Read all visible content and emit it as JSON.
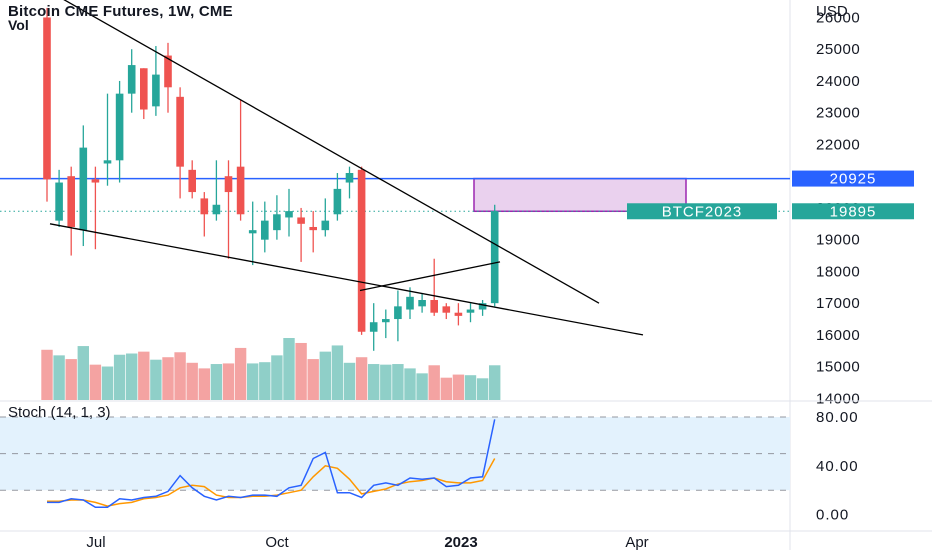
{
  "chart_data": [
    {
      "type": "candlestick",
      "title": "Bitcoin CME Futures, 1W, CME",
      "volume_label": "Vol",
      "currency": "USD",
      "y_ticks": [
        14000,
        15000,
        16000,
        17000,
        18000,
        19000,
        20000,
        21000,
        22000,
        23000,
        24000,
        25000,
        26000
      ],
      "y_tick_labels": [
        "14000",
        "15000",
        "16000",
        "17000",
        "18000",
        "19000",
        "20000",
        "21000",
        "22000",
        "23000",
        "24000",
        "25000",
        "26000"
      ],
      "y_range": [
        13950,
        26550
      ],
      "x_labels": [
        "Jul",
        "Oct",
        "2023",
        "Apr"
      ],
      "colors": {
        "up": "#26a69a",
        "down": "#ef5350",
        "vol_up": "#8fcfc8",
        "vol_down": "#f4a3a2",
        "price_line": "#2962ff",
        "trend": "#000000",
        "box": "#9c27b0"
      },
      "candles": [
        {
          "o": 26000,
          "h": 26300,
          "l": 20200,
          "c": 20900
        },
        {
          "o": 19600,
          "h": 21200,
          "l": 19400,
          "c": 20800
        },
        {
          "o": 21000,
          "h": 21300,
          "l": 18500,
          "c": 19400
        },
        {
          "o": 19300,
          "h": 22600,
          "l": 18800,
          "c": 21900
        },
        {
          "o": 20900,
          "h": 21300,
          "l": 18700,
          "c": 20800
        },
        {
          "o": 21400,
          "h": 23600,
          "l": 20700,
          "c": 21500
        },
        {
          "o": 21500,
          "h": 24000,
          "l": 20800,
          "c": 23600
        },
        {
          "o": 23600,
          "h": 25000,
          "l": 23000,
          "c": 24500
        },
        {
          "o": 24400,
          "h": 24400,
          "l": 22800,
          "c": 23100
        },
        {
          "o": 23200,
          "h": 25100,
          "l": 22900,
          "c": 24200
        },
        {
          "o": 24800,
          "h": 25200,
          "l": 23000,
          "c": 23800
        },
        {
          "o": 23500,
          "h": 23800,
          "l": 20300,
          "c": 21300
        },
        {
          "o": 21200,
          "h": 21500,
          "l": 20300,
          "c": 20500
        },
        {
          "o": 20300,
          "h": 20500,
          "l": 19100,
          "c": 19800
        },
        {
          "o": 19800,
          "h": 21500,
          "l": 19600,
          "c": 20100
        },
        {
          "o": 21000,
          "h": 21500,
          "l": 18400,
          "c": 20500
        },
        {
          "o": 21300,
          "h": 23400,
          "l": 19600,
          "c": 19800
        },
        {
          "o": 19200,
          "h": 20200,
          "l": 18200,
          "c": 19300
        },
        {
          "o": 19000,
          "h": 20200,
          "l": 18600,
          "c": 19600
        },
        {
          "o": 19300,
          "h": 20400,
          "l": 19000,
          "c": 19800
        },
        {
          "o": 19700,
          "h": 20600,
          "l": 19100,
          "c": 19900
        },
        {
          "o": 19700,
          "h": 20000,
          "l": 18300,
          "c": 19500
        },
        {
          "o": 19400,
          "h": 19900,
          "l": 18600,
          "c": 19300
        },
        {
          "o": 19300,
          "h": 20300,
          "l": 19100,
          "c": 19600
        },
        {
          "o": 19800,
          "h": 21100,
          "l": 19600,
          "c": 20600
        },
        {
          "o": 20800,
          "h": 21300,
          "l": 20300,
          "c": 21100
        },
        {
          "o": 21200,
          "h": 21300,
          "l": 16000,
          "c": 16100
        },
        {
          "o": 16100,
          "h": 17000,
          "l": 15500,
          "c": 16400
        },
        {
          "o": 16400,
          "h": 16800,
          "l": 15900,
          "c": 16500
        },
        {
          "o": 16500,
          "h": 17400,
          "l": 15800,
          "c": 16900
        },
        {
          "o": 16800,
          "h": 17500,
          "l": 16500,
          "c": 17200
        },
        {
          "o": 16900,
          "h": 17300,
          "l": 16700,
          "c": 17100
        },
        {
          "o": 17100,
          "h": 18400,
          "l": 16600,
          "c": 16700
        },
        {
          "o": 16900,
          "h": 17000,
          "l": 16500,
          "c": 16700
        },
        {
          "o": 16700,
          "h": 17000,
          "l": 16300,
          "c": 16600
        },
        {
          "o": 16700,
          "h": 17000,
          "l": 16400,
          "c": 16800
        },
        {
          "o": 16800,
          "h": 17100,
          "l": 16600,
          "c": 17000
        },
        {
          "o": 17000,
          "h": 20100,
          "l": 16900,
          "c": 19900
        }
      ],
      "volume_max": 1.0,
      "volumes": [
        0.81,
        0.72,
        0.66,
        0.87,
        0.57,
        0.54,
        0.73,
        0.75,
        0.78,
        0.65,
        0.69,
        0.77,
        0.6,
        0.51,
        0.58,
        0.59,
        0.84,
        0.59,
        0.61,
        0.72,
        1.0,
        0.92,
        0.66,
        0.78,
        0.88,
        0.6,
        0.69,
        0.58,
        0.57,
        0.58,
        0.51,
        0.43,
        0.56,
        0.36,
        0.41,
        0.4,
        0.35,
        0.56
      ],
      "price_level": {
        "value": 20925,
        "label": "20925"
      },
      "current_price": {
        "value": 19895,
        "label": "19895",
        "symbol": "BTCF2023"
      },
      "target_box": {
        "top": 20925,
        "bottom": 19895
      },
      "trendlines": [
        {
          "name": "upper-descending",
          "points": [
            [
              17,
              27400
            ],
            [
              599,
              17000
            ]
          ]
        },
        {
          "name": "lower-descending",
          "points": [
            [
              50,
              19500
            ],
            [
              643,
              16000
            ]
          ]
        },
        {
          "name": "short-rising",
          "points": [
            [
              360,
              17400
            ],
            [
              500,
              18300
            ]
          ]
        }
      ]
    },
    {
      "type": "line",
      "title": "Stoch (14, 1, 3)",
      "y_ticks": [
        0,
        40,
        80
      ],
      "y_tick_labels": [
        "0.00",
        "40.00",
        "80.00"
      ],
      "y_range": [
        -12.6,
        92.3
      ],
      "band": [
        20,
        80
      ],
      "colors": {
        "k": "#2962ff",
        "d": "#ff9800",
        "band": "#e3f2fd"
      },
      "k": [
        10,
        10,
        13,
        12,
        6,
        6,
        13,
        12,
        14,
        15,
        19,
        32,
        22,
        15,
        12,
        15,
        14,
        16,
        16,
        15,
        22,
        24,
        46,
        51,
        18,
        18,
        14,
        24,
        26,
        24,
        30,
        29,
        30,
        23,
        24,
        30,
        31,
        78
      ],
      "d": [
        11,
        11,
        12,
        12,
        10,
        7,
        9,
        10,
        13,
        14,
        16,
        22,
        24,
        23,
        16,
        14,
        14,
        15,
        15,
        16,
        18,
        20,
        31,
        40,
        38,
        29,
        17,
        19,
        21,
        25,
        27,
        28,
        30,
        27,
        26,
        26,
        28,
        46
      ]
    }
  ]
}
